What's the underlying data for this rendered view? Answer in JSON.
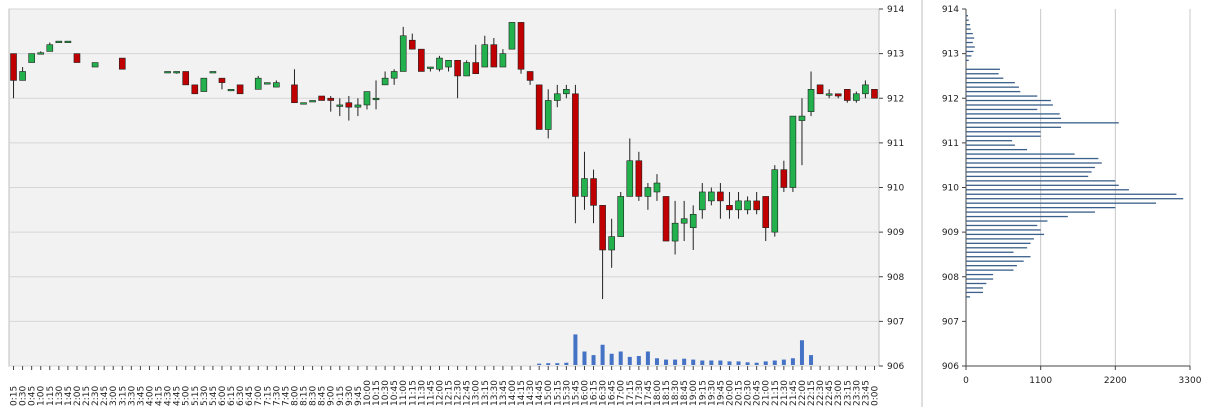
{
  "chart_data": [
    {
      "type": "candlestick",
      "title": "",
      "ylim": [
        906,
        914
      ],
      "y_ticks": [
        "914",
        "913",
        "912",
        "911",
        "910",
        "909",
        "908",
        "907",
        "906"
      ],
      "x_ticks": [
        "0:15",
        "0:30",
        "0:45",
        "1:00",
        "1:15",
        "1:30",
        "1:45",
        "2:00",
        "2:15",
        "2:30",
        "2:45",
        "3:00",
        "3:15",
        "3:30",
        "3:45",
        "4:00",
        "4:15",
        "4:30",
        "4:45",
        "5:00",
        "5:15",
        "5:30",
        "5:45",
        "6:00",
        "6:15",
        "6:30",
        "6:45",
        "7:00",
        "7:15",
        "7:30",
        "7:45",
        "8:00",
        "8:15",
        "8:30",
        "8:45",
        "9:00",
        "9:15",
        "9:30",
        "9:45",
        "10:00",
        "10:15",
        "10:30",
        "10:45",
        "11:00",
        "11:15",
        "11:30",
        "11:45",
        "12:00",
        "12:15",
        "12:30",
        "12:45",
        "13:00",
        "13:15",
        "13:30",
        "13:45",
        "14:00",
        "14:15",
        "14:30",
        "14:45",
        "15:00",
        "15:15",
        "15:30",
        "15:45",
        "16:00",
        "16:15",
        "16:30",
        "16:45",
        "17:00",
        "17:15",
        "17:30",
        "17:45",
        "18:00",
        "18:15",
        "18:30",
        "18:45",
        "19:00",
        "19:15",
        "19:30",
        "19:45",
        "20:00",
        "20:15",
        "20:30",
        "20:45",
        "21:00",
        "21:15",
        "21:30",
        "21:45",
        "22:00",
        "22:15",
        "22:30",
        "22:45",
        "23:00",
        "23:15",
        "23:30",
        "23:45",
        "0:00"
      ],
      "candles": [
        {
          "x": "0:15",
          "o": 913.0,
          "h": 913.0,
          "l": 912.0,
          "c": 912.4
        },
        {
          "x": "0:30",
          "o": 912.4,
          "h": 912.7,
          "l": 912.4,
          "c": 912.6
        },
        {
          "x": "0:45",
          "o": 912.8,
          "h": 913.0,
          "l": 912.8,
          "c": 913.0
        },
        {
          "x": "1:00",
          "o": 913.0,
          "h": 913.05,
          "l": 913.0,
          "c": 913.02
        },
        {
          "x": "1:15",
          "o": 913.05,
          "h": 913.25,
          "l": 913.05,
          "c": 913.2
        },
        {
          "x": "1:30",
          "o": 913.28,
          "h": 913.28,
          "l": 913.28,
          "c": 913.28
        },
        {
          "x": "1:45",
          "o": 913.28,
          "h": 913.28,
          "l": 913.28,
          "c": 913.28
        },
        {
          "x": "2:00",
          "o": 913.0,
          "h": 913.0,
          "l": 912.8,
          "c": 912.8
        },
        {
          "x": "2:30",
          "o": 912.7,
          "h": 912.8,
          "l": 912.7,
          "c": 912.8
        },
        {
          "x": "3:15",
          "o": 912.9,
          "h": 912.9,
          "l": 912.65,
          "c": 912.65
        },
        {
          "x": "4:30",
          "o": 912.6,
          "h": 912.6,
          "l": 912.6,
          "c": 912.6
        },
        {
          "x": "4:45",
          "o": 912.6,
          "h": 912.6,
          "l": 912.55,
          "c": 912.6
        },
        {
          "x": "5:00",
          "o": 912.6,
          "h": 912.6,
          "l": 912.3,
          "c": 912.3
        },
        {
          "x": "5:15",
          "o": 912.3,
          "h": 912.3,
          "l": 912.1,
          "c": 912.1
        },
        {
          "x": "5:30",
          "o": 912.15,
          "h": 912.45,
          "l": 912.15,
          "c": 912.45
        },
        {
          "x": "5:45",
          "o": 912.6,
          "h": 912.6,
          "l": 912.6,
          "c": 912.6
        },
        {
          "x": "6:00",
          "o": 912.45,
          "h": 912.45,
          "l": 912.2,
          "c": 912.35
        },
        {
          "x": "6:15",
          "o": 912.2,
          "h": 912.2,
          "l": 912.2,
          "c": 912.2
        },
        {
          "x": "6:30",
          "o": 912.3,
          "h": 912.3,
          "l": 912.1,
          "c": 912.1
        },
        {
          "x": "7:00",
          "o": 912.2,
          "h": 912.5,
          "l": 912.2,
          "c": 912.45
        },
        {
          "x": "7:15",
          "o": 912.35,
          "h": 912.35,
          "l": 912.35,
          "c": 912.35
        },
        {
          "x": "7:30",
          "o": 912.25,
          "h": 912.4,
          "l": 912.25,
          "c": 912.35
        },
        {
          "x": "8:00",
          "o": 912.3,
          "h": 912.65,
          "l": 911.9,
          "c": 911.9
        },
        {
          "x": "8:15",
          "o": 911.9,
          "h": 911.9,
          "l": 911.9,
          "c": 911.9
        },
        {
          "x": "8:30",
          "o": 911.95,
          "h": 911.95,
          "l": 911.95,
          "c": 911.95
        },
        {
          "x": "8:45",
          "o": 912.05,
          "h": 912.05,
          "l": 911.95,
          "c": 911.95
        },
        {
          "x": "9:00",
          "o": 912.0,
          "h": 912.05,
          "l": 911.7,
          "c": 911.95
        },
        {
          "x": "9:15",
          "o": 911.85,
          "h": 912.0,
          "l": 911.6,
          "c": 911.85
        },
        {
          "x": "9:30",
          "o": 911.9,
          "h": 912.05,
          "l": 911.5,
          "c": 911.8
        },
        {
          "x": "9:45",
          "o": 911.8,
          "h": 912.0,
          "l": 911.6,
          "c": 911.85
        },
        {
          "x": "10:00",
          "o": 911.85,
          "h": 912.15,
          "l": 911.75,
          "c": 912.15
        },
        {
          "x": "10:15",
          "o": 912.0,
          "h": 912.4,
          "l": 911.75,
          "c": 912.0
        },
        {
          "x": "10:30",
          "o": 912.3,
          "h": 912.6,
          "l": 912.3,
          "c": 912.45
        },
        {
          "x": "10:45",
          "o": 912.45,
          "h": 912.65,
          "l": 912.3,
          "c": 912.6
        },
        {
          "x": "11:00",
          "o": 912.6,
          "h": 913.6,
          "l": 912.6,
          "c": 913.4
        },
        {
          "x": "11:15",
          "o": 913.3,
          "h": 913.45,
          "l": 913.1,
          "c": 913.1
        },
        {
          "x": "11:30",
          "o": 913.1,
          "h": 913.1,
          "l": 912.6,
          "c": 912.6
        },
        {
          "x": "11:45",
          "o": 912.7,
          "h": 912.7,
          "l": 912.6,
          "c": 912.7
        },
        {
          "x": "12:00",
          "o": 912.65,
          "h": 912.95,
          "l": 912.6,
          "c": 912.9
        },
        {
          "x": "12:15",
          "o": 912.7,
          "h": 912.85,
          "l": 912.6,
          "c": 912.85
        },
        {
          "x": "12:30",
          "o": 912.85,
          "h": 912.85,
          "l": 912.0,
          "c": 912.5
        },
        {
          "x": "12:45",
          "o": 912.5,
          "h": 912.85,
          "l": 912.5,
          "c": 912.8
        },
        {
          "x": "13:00",
          "o": 912.8,
          "h": 913.2,
          "l": 912.55,
          "c": 912.55
        },
        {
          "x": "13:15",
          "o": 912.7,
          "h": 913.4,
          "l": 912.7,
          "c": 913.2
        },
        {
          "x": "13:30",
          "o": 913.2,
          "h": 913.35,
          "l": 912.7,
          "c": 912.7
        },
        {
          "x": "13:45",
          "o": 912.7,
          "h": 913.1,
          "l": 912.7,
          "c": 913.0
        },
        {
          "x": "14:00",
          "o": 913.1,
          "h": 913.7,
          "l": 913.1,
          "c": 913.7
        },
        {
          "x": "14:15",
          "o": 913.7,
          "h": 913.7,
          "l": 912.55,
          "c": 912.65
        },
        {
          "x": "14:30",
          "o": 912.6,
          "h": 912.6,
          "l": 912.3,
          "c": 912.4
        },
        {
          "x": "14:45",
          "o": 912.3,
          "h": 912.3,
          "l": 911.3,
          "c": 911.3
        },
        {
          "x": "15:00",
          "o": 911.3,
          "h": 912.2,
          "l": 911.1,
          "c": 911.95
        },
        {
          "x": "15:15",
          "o": 911.95,
          "h": 912.3,
          "l": 911.8,
          "c": 912.1
        },
        {
          "x": "15:30",
          "o": 912.1,
          "h": 912.3,
          "l": 912.0,
          "c": 912.2
        },
        {
          "x": "15:45",
          "o": 912.1,
          "h": 912.3,
          "l": 909.2,
          "c": 909.8
        },
        {
          "x": "16:00",
          "o": 909.8,
          "h": 910.8,
          "l": 909.5,
          "c": 910.2
        },
        {
          "x": "16:15",
          "o": 910.2,
          "h": 910.4,
          "l": 909.2,
          "c": 909.6
        },
        {
          "x": "16:30",
          "o": 909.6,
          "h": 909.6,
          "l": 907.5,
          "c": 908.6
        },
        {
          "x": "16:45",
          "o": 908.6,
          "h": 909.3,
          "l": 908.2,
          "c": 908.9
        },
        {
          "x": "17:00",
          "o": 908.9,
          "h": 909.9,
          "l": 908.9,
          "c": 909.8
        },
        {
          "x": "17:15",
          "o": 909.8,
          "h": 911.1,
          "l": 909.8,
          "c": 910.6
        },
        {
          "x": "17:30",
          "o": 910.6,
          "h": 910.8,
          "l": 909.7,
          "c": 909.8
        },
        {
          "x": "17:45",
          "o": 909.8,
          "h": 910.1,
          "l": 909.5,
          "c": 910.0
        },
        {
          "x": "18:00",
          "o": 909.9,
          "h": 910.3,
          "l": 909.7,
          "c": 910.1
        },
        {
          "x": "18:15",
          "o": 909.8,
          "h": 909.8,
          "l": 908.8,
          "c": 908.8
        },
        {
          "x": "18:30",
          "o": 908.8,
          "h": 909.7,
          "l": 908.5,
          "c": 909.2
        },
        {
          "x": "18:45",
          "o": 909.2,
          "h": 909.7,
          "l": 908.8,
          "c": 909.3
        },
        {
          "x": "19:00",
          "o": 909.1,
          "h": 909.6,
          "l": 908.6,
          "c": 909.4
        },
        {
          "x": "19:15",
          "o": 909.5,
          "h": 910.1,
          "l": 909.3,
          "c": 909.9
        },
        {
          "x": "19:30",
          "o": 909.7,
          "h": 910.0,
          "l": 909.6,
          "c": 909.9
        },
        {
          "x": "19:45",
          "o": 909.9,
          "h": 910.1,
          "l": 909.3,
          "c": 909.7
        },
        {
          "x": "20:00",
          "o": 909.6,
          "h": 909.9,
          "l": 909.3,
          "c": 909.5
        },
        {
          "x": "20:15",
          "o": 909.5,
          "h": 909.9,
          "l": 909.3,
          "c": 909.7
        },
        {
          "x": "20:30",
          "o": 909.5,
          "h": 909.8,
          "l": 909.4,
          "c": 909.7
        },
        {
          "x": "20:45",
          "o": 909.7,
          "h": 909.9,
          "l": 909.4,
          "c": 909.5
        },
        {
          "x": "21:00",
          "o": 909.8,
          "h": 909.8,
          "l": 908.8,
          "c": 909.1
        },
        {
          "x": "21:15",
          "o": 909.0,
          "h": 910.5,
          "l": 908.9,
          "c": 910.4
        },
        {
          "x": "21:30",
          "o": 910.4,
          "h": 910.6,
          "l": 909.9,
          "c": 910.0
        },
        {
          "x": "21:45",
          "o": 910.0,
          "h": 911.6,
          "l": 909.9,
          "c": 911.6
        },
        {
          "x": "22:00",
          "o": 911.5,
          "h": 912.0,
          "l": 910.5,
          "c": 911.6
        },
        {
          "x": "22:15",
          "o": 911.7,
          "h": 912.6,
          "l": 911.6,
          "c": 912.2
        },
        {
          "x": "22:30",
          "o": 912.3,
          "h": 912.3,
          "l": 912.1,
          "c": 912.1
        },
        {
          "x": "22:45",
          "o": 912.1,
          "h": 912.2,
          "l": 912.0,
          "c": 912.1
        },
        {
          "x": "23:00",
          "o": 912.1,
          "h": 912.1,
          "l": 912.0,
          "c": 912.05
        },
        {
          "x": "23:15",
          "o": 912.2,
          "h": 912.2,
          "l": 911.9,
          "c": 911.95
        },
        {
          "x": "23:30",
          "o": 911.95,
          "h": 912.15,
          "l": 911.9,
          "c": 912.1
        },
        {
          "x": "23:45",
          "o": 912.1,
          "h": 912.4,
          "l": 912.0,
          "c": 912.3
        },
        {
          "x": "0:00",
          "o": 912.2,
          "h": 912.2,
          "l": 912.0,
          "c": 912.0
        }
      ],
      "volume": {
        "x": [
          "14:45",
          "15:00",
          "15:15",
          "15:30",
          "15:45",
          "16:00",
          "16:15",
          "16:30",
          "16:45",
          "17:00",
          "17:15",
          "17:30",
          "17:45",
          "18:00",
          "18:15",
          "18:30",
          "18:45",
          "19:00",
          "19:15",
          "19:30",
          "19:45",
          "20:00",
          "20:15",
          "20:30",
          "20:45",
          "21:00",
          "21:15",
          "21:30",
          "21:45",
          "22:00",
          "22:15"
        ],
        "values": [
          3,
          4,
          4,
          5,
          68,
          30,
          22,
          45,
          25,
          30,
          18,
          20,
          30,
          15,
          12,
          12,
          14,
          12,
          10,
          10,
          10,
          8,
          8,
          6,
          5,
          8,
          10,
          12,
          15,
          55,
          22
        ],
        "ymax": 100
      },
      "colors": {
        "up": "#22b14c",
        "down": "#c00000",
        "volume": "#4472c4",
        "background": "#f2f2f2"
      }
    },
    {
      "type": "bar",
      "orientation": "horizontal",
      "title": "",
      "x_ticks": [
        "0",
        "1100",
        "2200",
        "3300"
      ],
      "xlim": [
        0,
        3300
      ],
      "y_ticks": [
        "914",
        "913",
        "912",
        "911",
        "910",
        "909",
        "908",
        "907",
        "906"
      ],
      "ylim": [
        906,
        914
      ],
      "bars": [
        {
          "y": 913.85,
          "v": 30
        },
        {
          "y": 913.75,
          "v": 40
        },
        {
          "y": 913.65,
          "v": 60
        },
        {
          "y": 913.55,
          "v": 70
        },
        {
          "y": 913.45,
          "v": 100
        },
        {
          "y": 913.35,
          "v": 120
        },
        {
          "y": 913.25,
          "v": 100
        },
        {
          "y": 913.15,
          "v": 130
        },
        {
          "y": 913.05,
          "v": 110
        },
        {
          "y": 912.95,
          "v": 80
        },
        {
          "y": 912.85,
          "v": 40
        },
        {
          "y": 912.65,
          "v": 500
        },
        {
          "y": 912.55,
          "v": 480
        },
        {
          "y": 912.45,
          "v": 550
        },
        {
          "y": 912.35,
          "v": 720
        },
        {
          "y": 912.25,
          "v": 780
        },
        {
          "y": 912.15,
          "v": 800
        },
        {
          "y": 912.05,
          "v": 1050
        },
        {
          "y": 911.95,
          "v": 1250
        },
        {
          "y": 911.85,
          "v": 1280
        },
        {
          "y": 911.75,
          "v": 1050
        },
        {
          "y": 911.65,
          "v": 1380
        },
        {
          "y": 911.55,
          "v": 1400
        },
        {
          "y": 911.45,
          "v": 2250
        },
        {
          "y": 911.35,
          "v": 1400
        },
        {
          "y": 911.25,
          "v": 1100
        },
        {
          "y": 911.15,
          "v": 1100
        },
        {
          "y": 911.05,
          "v": 680
        },
        {
          "y": 910.95,
          "v": 720
        },
        {
          "y": 910.85,
          "v": 900
        },
        {
          "y": 910.75,
          "v": 1600
        },
        {
          "y": 910.65,
          "v": 1950
        },
        {
          "y": 910.55,
          "v": 2000
        },
        {
          "y": 910.45,
          "v": 1900
        },
        {
          "y": 910.35,
          "v": 1850
        },
        {
          "y": 910.25,
          "v": 1800
        },
        {
          "y": 910.15,
          "v": 2200
        },
        {
          "y": 910.05,
          "v": 2250
        },
        {
          "y": 909.95,
          "v": 2400
        },
        {
          "y": 909.85,
          "v": 3100
        },
        {
          "y": 909.75,
          "v": 3200
        },
        {
          "y": 909.65,
          "v": 2800
        },
        {
          "y": 909.55,
          "v": 2200
        },
        {
          "y": 909.45,
          "v": 1900
        },
        {
          "y": 909.35,
          "v": 1500
        },
        {
          "y": 909.25,
          "v": 1200
        },
        {
          "y": 909.15,
          "v": 1050
        },
        {
          "y": 909.05,
          "v": 1100
        },
        {
          "y": 908.95,
          "v": 1150
        },
        {
          "y": 908.85,
          "v": 1000
        },
        {
          "y": 908.75,
          "v": 950
        },
        {
          "y": 908.65,
          "v": 900
        },
        {
          "y": 908.55,
          "v": 700
        },
        {
          "y": 908.45,
          "v": 950
        },
        {
          "y": 908.35,
          "v": 850
        },
        {
          "y": 908.25,
          "v": 750
        },
        {
          "y": 908.15,
          "v": 700
        },
        {
          "y": 908.05,
          "v": 400
        },
        {
          "y": 907.95,
          "v": 400
        },
        {
          "y": 907.85,
          "v": 300
        },
        {
          "y": 907.75,
          "v": 250
        },
        {
          "y": 907.65,
          "v": 250
        },
        {
          "y": 907.55,
          "v": 60
        }
      ],
      "colors": {
        "bar": "#3a5f8a",
        "grid": "#c8c8c8"
      }
    }
  ]
}
